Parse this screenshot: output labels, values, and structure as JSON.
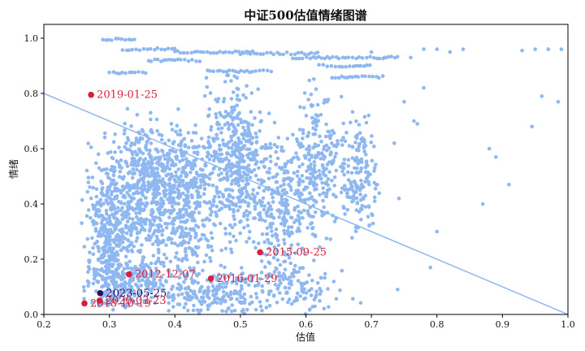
{
  "chart_data": {
    "type": "scatter",
    "title": "中证500估值情绪图谱",
    "xlabel": "估值",
    "ylabel": "情绪",
    "xlim": [
      0.2,
      1.0
    ],
    "ylim": [
      0.0,
      1.05
    ],
    "x_ticks": [
      "0.2",
      "0.3",
      "0.4",
      "0.5",
      "0.6",
      "0.7",
      "0.8",
      "0.9",
      "1.0"
    ],
    "y_ticks": [
      "0.0",
      "0.2",
      "0.4",
      "0.6",
      "0.8",
      "1.0"
    ],
    "grid": false,
    "colors": {
      "points": "#8fb8f0",
      "trend_line": "#8fb8f0",
      "highlight": "#d6203c",
      "highlight_latest": "#2b0f5c",
      "annotation": "#d6203c",
      "annotation_latest": "#2b0f5c"
    },
    "trend_line": {
      "x": [
        0.2,
        1.0
      ],
      "y": [
        0.8,
        0.0
      ]
    },
    "highlights": [
      {
        "label": "2019-01-25",
        "x": 0.272,
        "y": 0.795,
        "latest": false
      },
      {
        "label": "2015-09-25",
        "x": 0.53,
        "y": 0.225,
        "latest": false
      },
      {
        "label": "2012-12-07",
        "x": 0.33,
        "y": 0.145,
        "latest": false
      },
      {
        "label": "2016-01-29",
        "x": 0.455,
        "y": 0.13,
        "latest": false
      },
      {
        "label": "2023-05-25",
        "x": 0.286,
        "y": 0.077,
        "latest": true
      },
      {
        "label": "2018-10-19",
        "x": 0.262,
        "y": 0.04,
        "latest": false
      },
      {
        "label": "2020-03-23",
        "x": 0.285,
        "y": 0.05,
        "latest": false
      }
    ]
  }
}
